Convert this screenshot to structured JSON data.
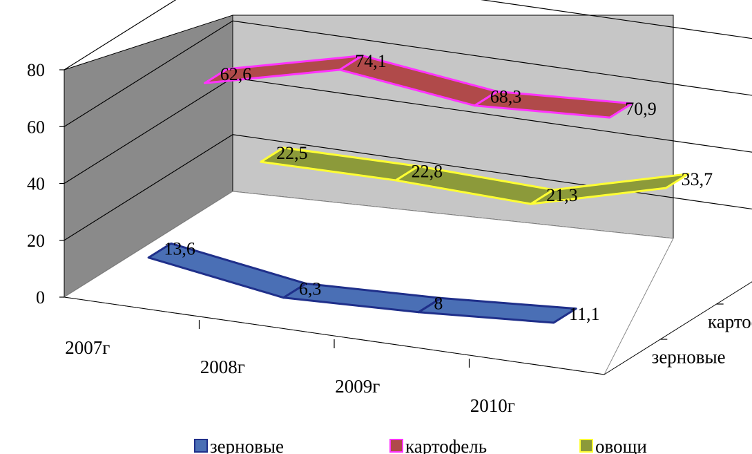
{
  "chart_data": {
    "type": "line",
    "style": "3d-ribbon",
    "title": "",
    "xlabel": "",
    "ylabel": "",
    "ylim": [
      0,
      80
    ],
    "yticks": [
      "0",
      "20",
      "40",
      "60",
      "80"
    ],
    "categories": [
      "2007г",
      "2008г",
      "2009г",
      "2010г"
    ],
    "series_axis": [
      "зерновые",
      "картофель",
      "овощи"
    ],
    "grid": true,
    "legend": "bottom",
    "series": [
      {
        "name": "зерновые",
        "values": [
          13.6,
          6.3,
          8,
          11.1
        ],
        "labels": [
          "13,6",
          "6,3",
          "8",
          "11,1"
        ],
        "color": "#4a6fb5",
        "edge": "#1f2f8a"
      },
      {
        "name": "картофель",
        "values": [
          62.6,
          74.1,
          68.3,
          70.9
        ],
        "labels": [
          "62,6",
          "74,1",
          "68,3",
          "70,9"
        ],
        "color": "#b04a4a",
        "edge": "#ff33ff"
      },
      {
        "name": "овощи",
        "values": [
          22.5,
          22.8,
          21.3,
          33.7
        ],
        "labels": [
          "22,5",
          "22,8",
          "21,3",
          "33,7"
        ],
        "color": "#8c9a3a",
        "edge": "#ffff33"
      }
    ]
  }
}
